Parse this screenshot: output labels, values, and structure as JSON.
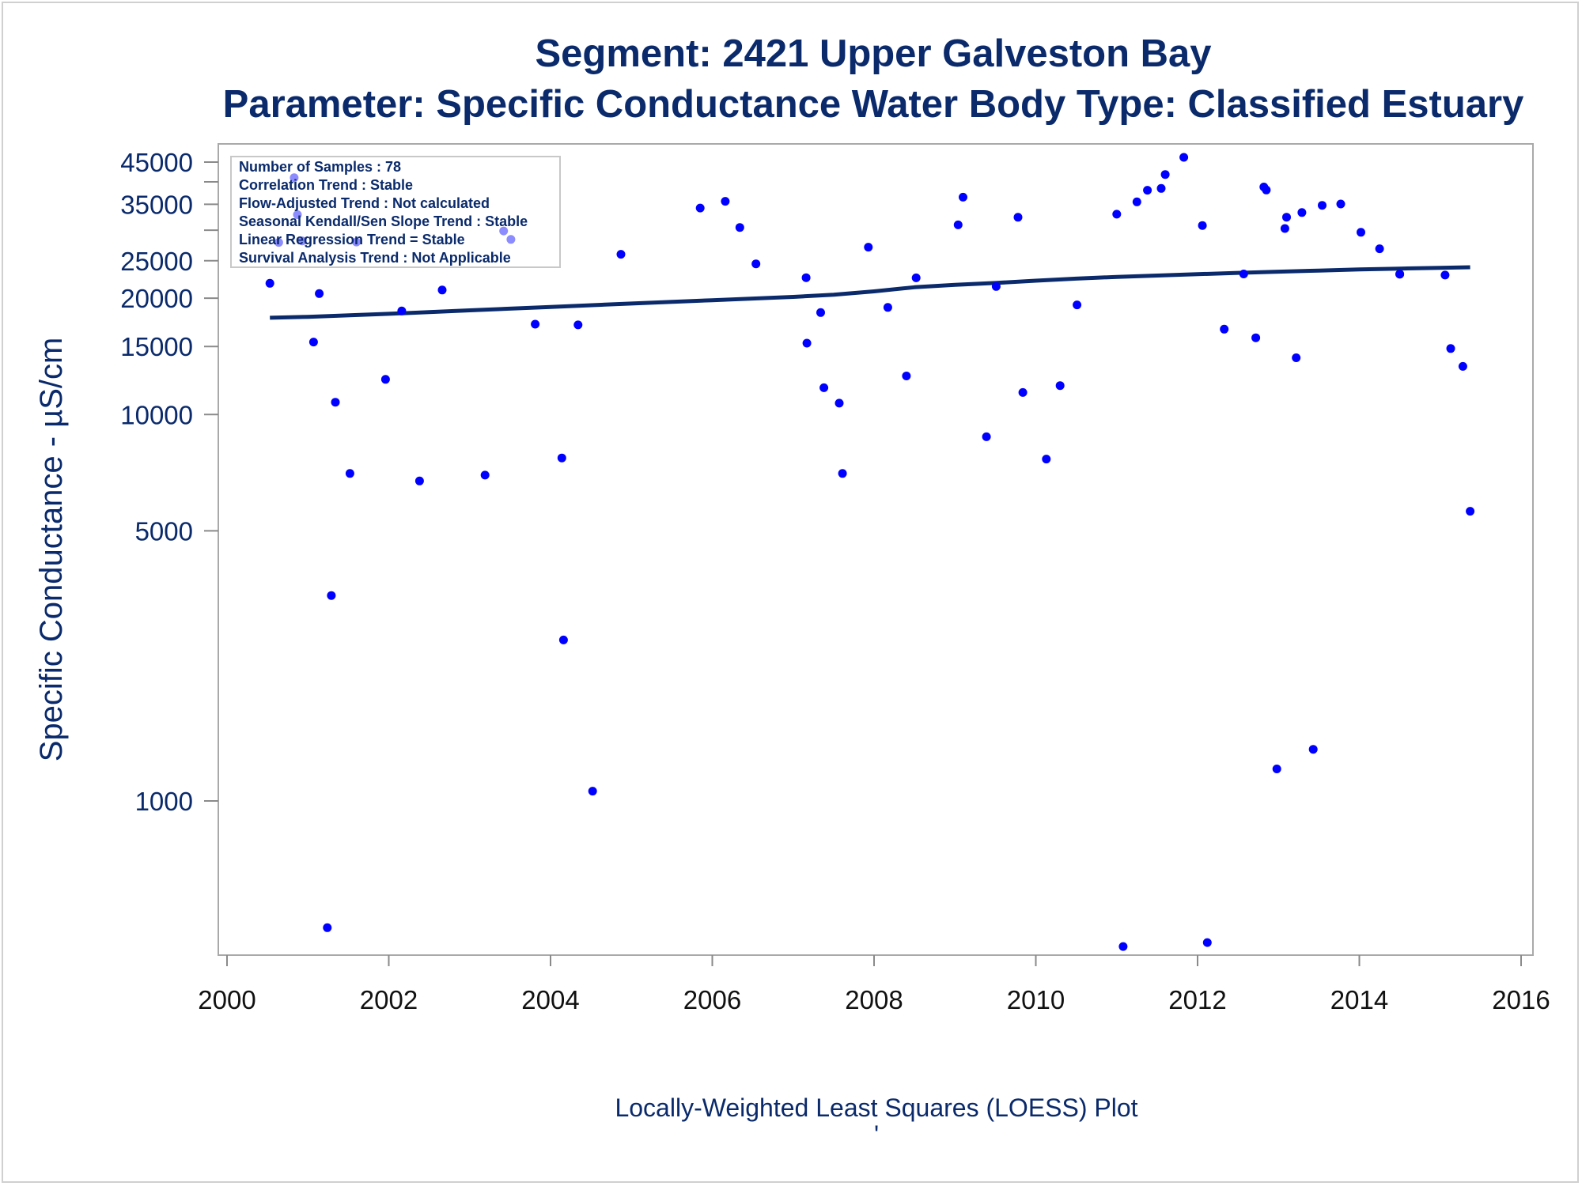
{
  "chart_data": {
    "type": "scatter",
    "title": "Segment: 2421  Upper Galveston Bay",
    "subtitle": "Parameter: Specific Conductance   Water Body Type: Classified Estuary",
    "xlabel": "Locally-Weighted Least Squares (LOESS) Plot",
    "ylabel": "Specific Conductance -  µS/cm",
    "footnote_mark": "'",
    "y_scale": "log",
    "xlim": [
      2000,
      2016
    ],
    "ylim": [
      265,
      50000
    ],
    "x_ticks": [
      2000,
      2002,
      2004,
      2006,
      2008,
      2010,
      2012,
      2014,
      2016
    ],
    "y_ticks_labeled": [
      1000,
      5000,
      10000,
      15000,
      20000,
      25000,
      35000,
      45000
    ],
    "y_ticks_minor": [
      30000,
      40000
    ],
    "grid": false,
    "legend": {
      "placement": "top-left",
      "lines": [
        "Number of Samples : 78",
        "Correlation Trend : Stable",
        "Flow-Adjusted Trend : Not calculated",
        "Seasonal Kendall/Sen Slope Trend : Stable",
        "Linear Regression Trend = Stable",
        "Survival Analysis Trend : Not Applicable"
      ]
    },
    "colors": {
      "points": "#0000ff",
      "line": "#0a2a6b",
      "text": "#0a2a6b"
    },
    "series": [
      {
        "kind": "points",
        "points": [
          [
            2000.53,
            21850
          ],
          [
            2000.64,
            27880
          ],
          [
            2000.83,
            41000
          ],
          [
            2000.87,
            32900
          ],
          [
            2000.93,
            28130
          ],
          [
            2001.07,
            15400
          ],
          [
            2001.14,
            20560
          ],
          [
            2001.24,
            470
          ],
          [
            2001.29,
            3400
          ],
          [
            2001.34,
            10760
          ],
          [
            2001.52,
            7040
          ],
          [
            2001.6,
            27950
          ],
          [
            2001.96,
            12330
          ],
          [
            2002.16,
            18530
          ],
          [
            2002.38,
            6730
          ],
          [
            2002.66,
            21000
          ],
          [
            2003.19,
            6970
          ],
          [
            2003.42,
            29860
          ],
          [
            2003.51,
            28380
          ],
          [
            2003.81,
            17130
          ],
          [
            2004.14,
            7720
          ],
          [
            2004.16,
            2610
          ],
          [
            2004.34,
            17060
          ],
          [
            2004.52,
            1060
          ],
          [
            2004.87,
            25980
          ],
          [
            2005.85,
            34230
          ],
          [
            2006.16,
            35630
          ],
          [
            2006.34,
            30480
          ],
          [
            2006.54,
            24540
          ],
          [
            2007.16,
            22600
          ],
          [
            2007.17,
            15300
          ],
          [
            2007.34,
            18360
          ],
          [
            2007.38,
            11730
          ],
          [
            2007.57,
            10700
          ],
          [
            2007.61,
            7040
          ],
          [
            2007.93,
            27100
          ],
          [
            2008.17,
            18930
          ],
          [
            2008.4,
            12580
          ],
          [
            2008.52,
            22580
          ],
          [
            2009.04,
            30960
          ],
          [
            2009.1,
            36500
          ],
          [
            2009.39,
            8760
          ],
          [
            2009.51,
            21450
          ],
          [
            2009.78,
            32390
          ],
          [
            2009.84,
            11400
          ],
          [
            2010.13,
            7670
          ],
          [
            2010.3,
            11880
          ],
          [
            2010.51,
            19220
          ],
          [
            2011.0,
            32990
          ],
          [
            2011.08,
            420
          ],
          [
            2011.25,
            35500
          ],
          [
            2011.38,
            38050
          ],
          [
            2011.55,
            38470
          ],
          [
            2011.6,
            41800
          ],
          [
            2011.83,
            46300
          ],
          [
            2012.06,
            30840
          ],
          [
            2012.12,
            430
          ],
          [
            2012.33,
            16630
          ],
          [
            2012.57,
            23100
          ],
          [
            2012.72,
            15800
          ],
          [
            2012.82,
            38800
          ],
          [
            2012.85,
            38100
          ],
          [
            2012.98,
            1210
          ],
          [
            2013.08,
            30290
          ],
          [
            2013.1,
            32400
          ],
          [
            2013.22,
            14020
          ],
          [
            2013.29,
            33320
          ],
          [
            2013.43,
            1360
          ],
          [
            2013.54,
            34770
          ],
          [
            2013.77,
            35060
          ],
          [
            2014.02,
            29620
          ],
          [
            2014.25,
            26850
          ],
          [
            2014.5,
            23080
          ],
          [
            2014.5,
            23080
          ],
          [
            2015.06,
            22950
          ],
          [
            2015.13,
            14820
          ],
          [
            2015.28,
            13320
          ],
          [
            2015.37,
            5620
          ]
        ]
      },
      {
        "kind": "loess",
        "points": [
          [
            2000.53,
            17800
          ],
          [
            2001.0,
            17900
          ],
          [
            2002.0,
            18220
          ],
          [
            2003.0,
            18600
          ],
          [
            2004.0,
            18980
          ],
          [
            2005.0,
            19370
          ],
          [
            2006.0,
            19760
          ],
          [
            2007.0,
            20150
          ],
          [
            2007.5,
            20420
          ],
          [
            2008.0,
            20830
          ],
          [
            2008.5,
            21350
          ],
          [
            2009.0,
            21660
          ],
          [
            2009.5,
            21900
          ],
          [
            2010.0,
            22200
          ],
          [
            2010.5,
            22470
          ],
          [
            2011.0,
            22710
          ],
          [
            2011.5,
            22890
          ],
          [
            2012.0,
            23070
          ],
          [
            2012.5,
            23260
          ],
          [
            2013.0,
            23420
          ],
          [
            2013.5,
            23580
          ],
          [
            2014.0,
            23730
          ],
          [
            2014.5,
            23860
          ],
          [
            2015.0,
            23970
          ],
          [
            2015.37,
            24050
          ]
        ]
      }
    ]
  }
}
